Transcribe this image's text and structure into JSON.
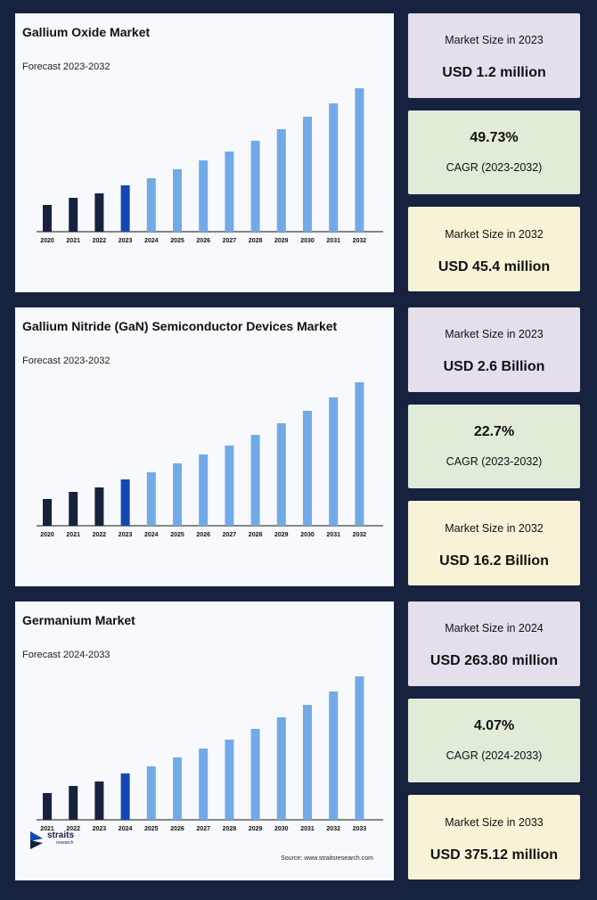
{
  "colors": {
    "historical": "#17223f",
    "base": "#1447b3",
    "forecast": "#72aae8",
    "background": "#17223f"
  },
  "panels": [
    {
      "title": "Gallium Oxide Market",
      "subtitle": "Forecast 2023-2032",
      "chart_data": {
        "type": "bar",
        "title": "Gallium Oxide Market",
        "subtitle": "Forecast 2023-2032",
        "categories": [
          "2020",
          "2021",
          "2022",
          "2023",
          "2024",
          "2025",
          "2026",
          "2027",
          "2028",
          "2029",
          "2030",
          "2031",
          "2032"
        ],
        "values": [
          30,
          38,
          43,
          52,
          60,
          70,
          80,
          90,
          102,
          115,
          129,
          144,
          161
        ],
        "base_year_index": 3,
        "xlabel": "",
        "ylabel": "",
        "grid": false
      },
      "stats": [
        {
          "label": "Market Size in 2023",
          "value": "USD 1.2 million"
        },
        {
          "label": "CAGR (2023-2032)",
          "value": "49.73%"
        },
        {
          "label": "Market Size in 2032",
          "value": "USD 45.4 million"
        }
      ]
    },
    {
      "title": "Gallium Nitride (GaN) Semiconductor Devices Market",
      "subtitle": "Forecast 2023-2032",
      "chart_data": {
        "type": "bar",
        "title": "Gallium Nitride (GaN) Semiconductor Devices Market",
        "subtitle": "Forecast 2023-2032",
        "categories": [
          "2020",
          "2021",
          "2022",
          "2023",
          "2024",
          "2025",
          "2026",
          "2027",
          "2028",
          "2029",
          "2030",
          "2031",
          "2032"
        ],
        "values": [
          30,
          38,
          43,
          52,
          60,
          70,
          80,
          90,
          102,
          115,
          129,
          144,
          161
        ],
        "base_year_index": 3,
        "xlabel": "",
        "ylabel": "",
        "grid": false
      },
      "stats": [
        {
          "label": "Market Size in 2023",
          "value": "USD 2.6 Billion"
        },
        {
          "label": "CAGR (2023-2032)",
          "value": "22.7%"
        },
        {
          "label": "Market Size in 2032",
          "value": "USD 16.2 Billion"
        }
      ]
    },
    {
      "title": "Germanium Market",
      "subtitle": "Forecast 2024-2033",
      "chart_data": {
        "type": "bar",
        "title": "Germanium Market",
        "subtitle": "Forecast 2024-2033",
        "categories": [
          "2021",
          "2022",
          "2023",
          "2024",
          "2025",
          "2026",
          "2027",
          "2028",
          "2029",
          "2030",
          "2031",
          "2032",
          "2033"
        ],
        "values": [
          30,
          38,
          43,
          52,
          60,
          70,
          80,
          90,
          102,
          115,
          129,
          144,
          161
        ],
        "base_year_index": 3,
        "xlabel": "",
        "ylabel": "",
        "grid": false
      },
      "stats": [
        {
          "label": "Market Size in 2024",
          "value": "USD 263.80 million"
        },
        {
          "label": "CAGR (2024-2033)",
          "value": "4.07%"
        },
        {
          "label": "Market Size in 2033",
          "value": "USD 375.12 million"
        }
      ]
    }
  ],
  "footer": {
    "logo_word": "straits",
    "logo_sub": "research",
    "source": "Source: www.straitsresearch.com"
  }
}
